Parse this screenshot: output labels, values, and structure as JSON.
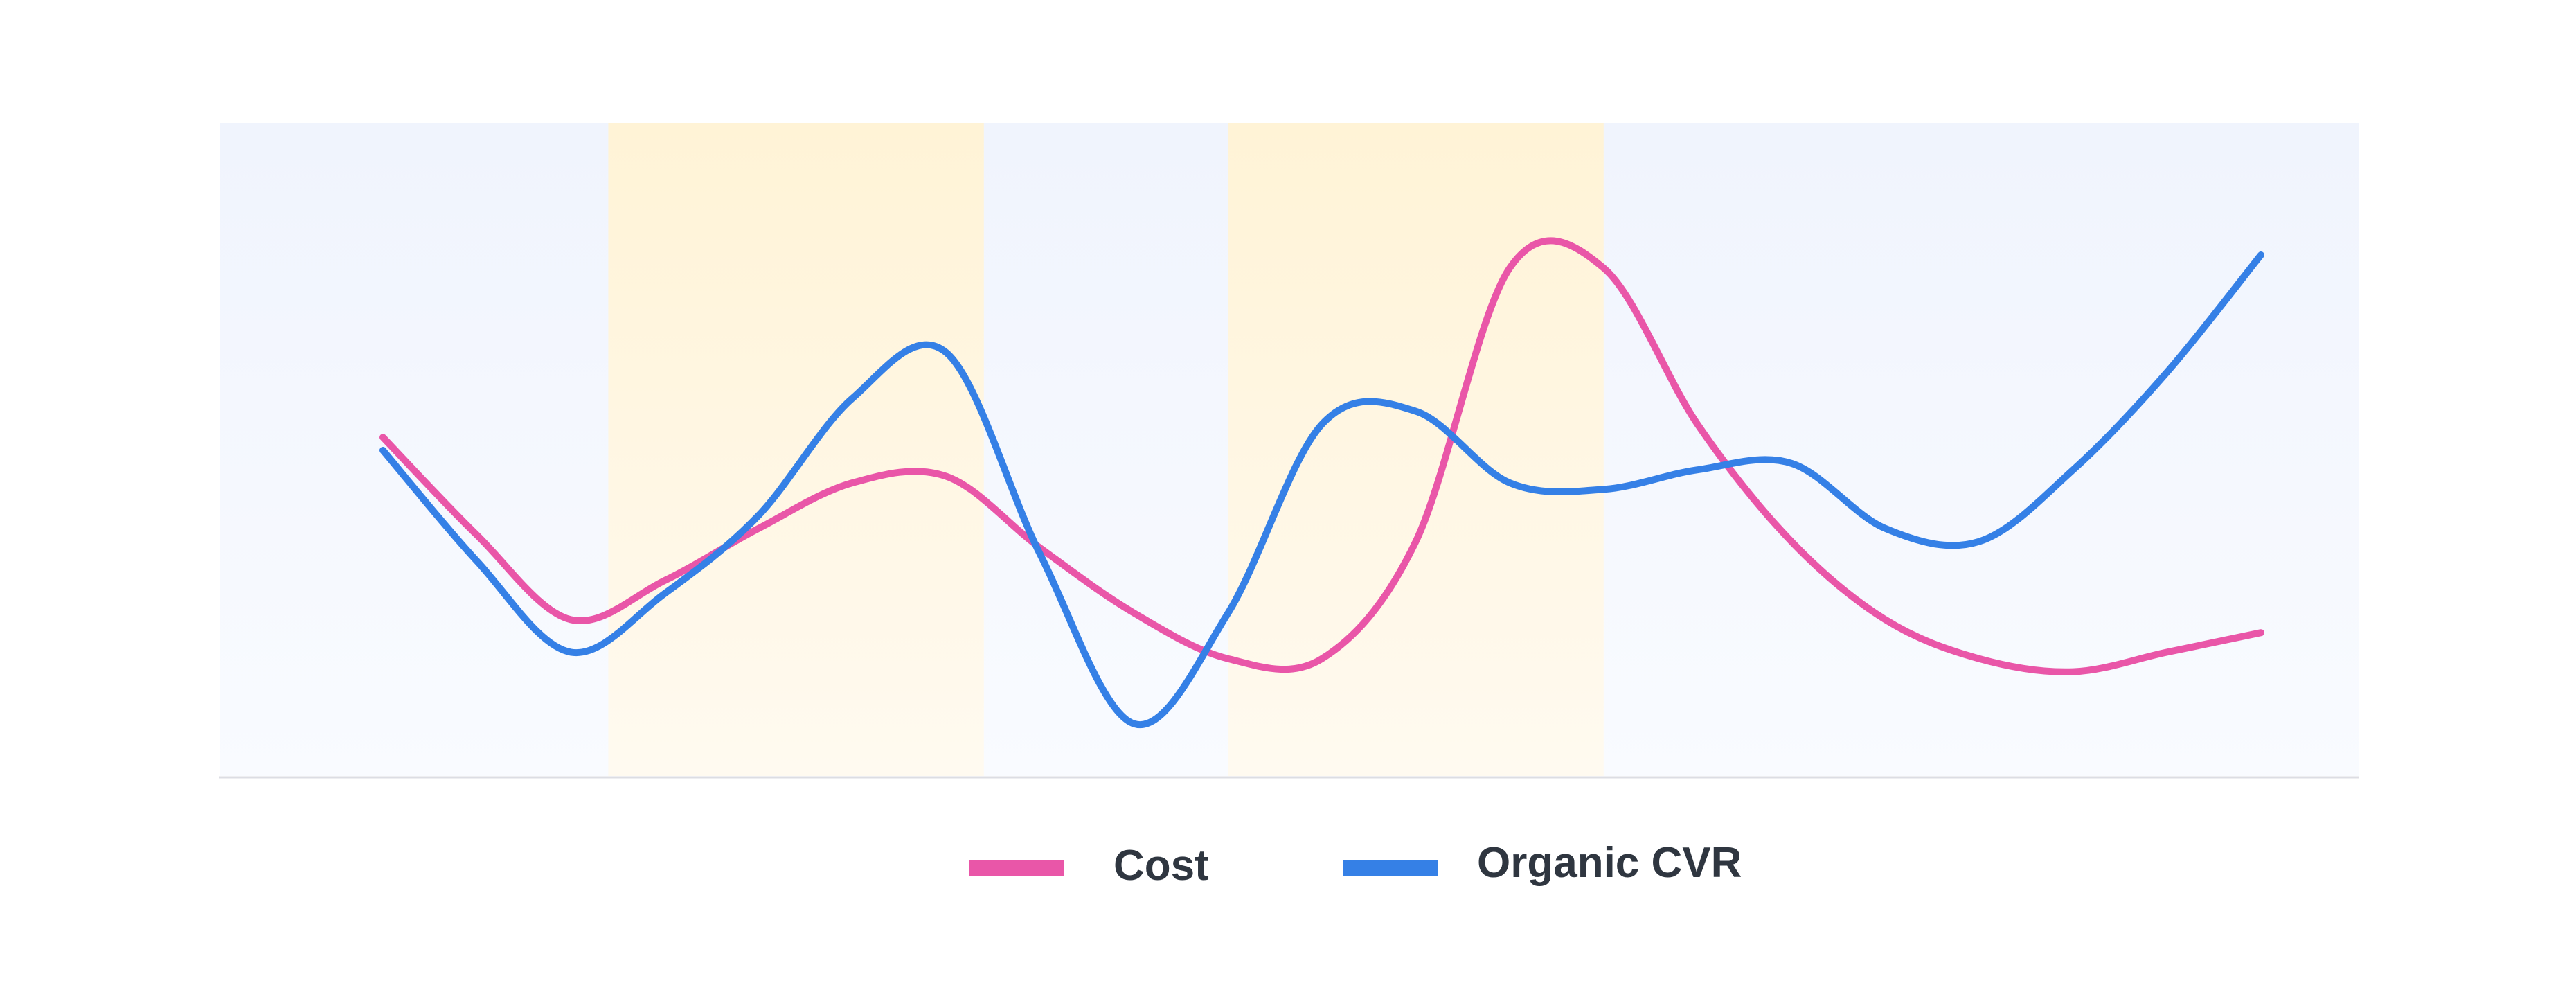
{
  "chart_data": {
    "type": "line",
    "title": "",
    "xlabel": "",
    "ylabel": "",
    "x": [
      0,
      1,
      2,
      3,
      4,
      5,
      6,
      7,
      8,
      9,
      10,
      11,
      12,
      13,
      14,
      15,
      16,
      17,
      18,
      19,
      20
    ],
    "xlim": [
      0,
      20
    ],
    "ylim": [
      0,
      100
    ],
    "grid": false,
    "highlight_bands": [
      {
        "from": 2.4,
        "to": 6.4,
        "color": "#fff3d1"
      },
      {
        "from": 9.0,
        "to": 13.0,
        "color": "#fff3d1"
      }
    ],
    "series": [
      {
        "name": "Cost",
        "color": "#e956a8",
        "values": [
          52,
          37,
          24,
          30,
          38,
          45,
          46,
          35,
          25,
          18,
          18,
          36,
          78,
          78,
          54,
          36,
          24,
          18,
          16,
          19,
          22
        ]
      },
      {
        "name": "Organic CVR",
        "color": "#3580e6",
        "values": [
          50,
          33,
          19,
          28,
          40,
          58,
          65,
          34,
          8,
          25,
          54,
          56,
          45,
          44,
          47,
          48,
          38,
          36,
          47,
          62,
          80
        ]
      }
    ],
    "legend": {
      "placement": "bottom-center",
      "entries": [
        "Cost",
        "Organic CVR"
      ]
    }
  }
}
